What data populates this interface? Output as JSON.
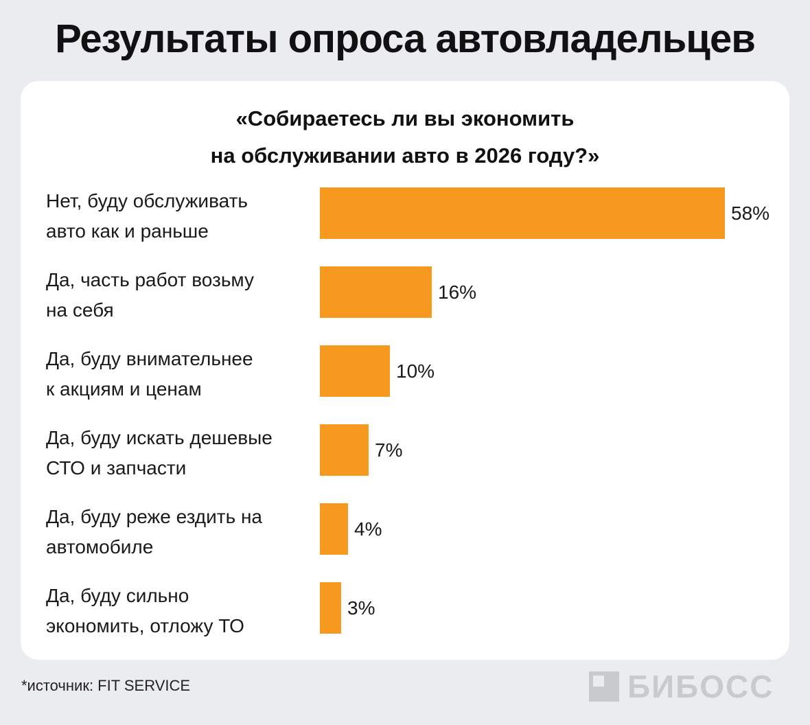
{
  "header": {
    "title": "Результаты опроса автовладельцев"
  },
  "question": {
    "line1": "«Собираетесь ли вы экономить",
    "line2": "на обслуживании авто в 2026 году?»"
  },
  "colors": {
    "bar": "#f7981f",
    "card": "#ffffff",
    "background": "#ebecf0"
  },
  "chart_data": {
    "type": "bar",
    "orientation": "horizontal",
    "title": "«Собираетесь ли вы экономить на обслуживании авто в 2026 году?»",
    "categories": [
      [
        "Нет, буду обслуживать",
        "авто как и раньше"
      ],
      [
        "Да, часть работ возьму",
        "на себя"
      ],
      [
        "Да, буду внимательнее",
        "к акциям и ценам"
      ],
      [
        "Да, буду искать дешевые",
        "СТО и запчасти"
      ],
      [
        "Да, буду реже ездить на",
        "автомобиле"
      ],
      [
        "Да, буду сильно",
        "экономить, отложу ТО"
      ]
    ],
    "values": [
      58,
      16,
      10,
      7,
      4,
      3
    ],
    "value_labels": [
      "58%",
      "16%",
      "10%",
      "7%",
      "4%",
      "3%"
    ],
    "unit": "%",
    "xlim": [
      0,
      58
    ]
  },
  "footer": {
    "source": "*источник: FIT SERVICE",
    "logo": "БИБОСС"
  }
}
